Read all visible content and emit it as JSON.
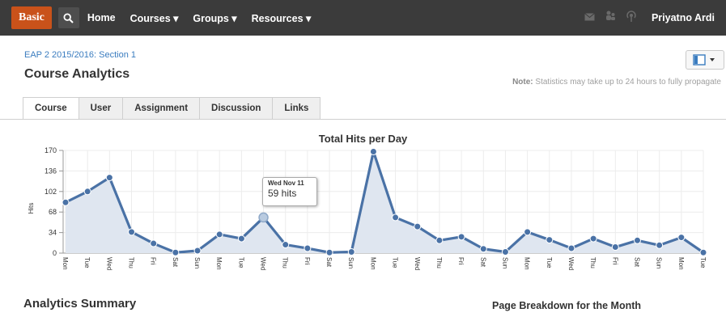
{
  "topbar": {
    "brand": "Basic",
    "nav": [
      "Home",
      "Courses ▾",
      "Groups ▾",
      "Resources ▾"
    ],
    "user": "Priyatno Ardi"
  },
  "header": {
    "breadcrumb": "EAP 2 2015/2016: Section 1",
    "title": "Course Analytics",
    "note_label": "Note:",
    "note_text": " Statistics may take up to 24 hours to fully propagate"
  },
  "tabs": [
    "Course",
    "User",
    "Assignment",
    "Discussion",
    "Links"
  ],
  "chart_data": {
    "type": "area",
    "title": "Total Hits per Day",
    "ylabel": "Hits",
    "xlabel": "",
    "ylim": [
      0,
      170
    ],
    "yticks": [
      0,
      34,
      68,
      102,
      136,
      170
    ],
    "categories": [
      "Mon",
      "Tue",
      "Wed",
      "Thu",
      "Fri",
      "Sat",
      "Sun",
      "Mon",
      "Tue",
      "Wed",
      "Thu",
      "Fri",
      "Sat",
      "Sun",
      "Mon",
      "Tue",
      "Wed",
      "Thu",
      "Fri",
      "Sat",
      "Sun",
      "Mon",
      "Tue",
      "Wed",
      "Thu",
      "Fri",
      "Sat",
      "Sun",
      "Mon",
      "Tue"
    ],
    "values": [
      84,
      102,
      125,
      35,
      16,
      1,
      4,
      31,
      24,
      59,
      14,
      8,
      1,
      2,
      168,
      59,
      44,
      21,
      27,
      7,
      2,
      35,
      22,
      8,
      24,
      10,
      21,
      13,
      26,
      1
    ],
    "highlight_index": 9,
    "grid": true,
    "series_color": "#4a72a6",
    "fill_color": "#dfe6f0"
  },
  "tooltip": {
    "date": "Wed Nov 11",
    "value": "59 hits"
  },
  "sections": {
    "summary": "Analytics Summary",
    "breakdown": "Page Breakdown for the Month"
  }
}
